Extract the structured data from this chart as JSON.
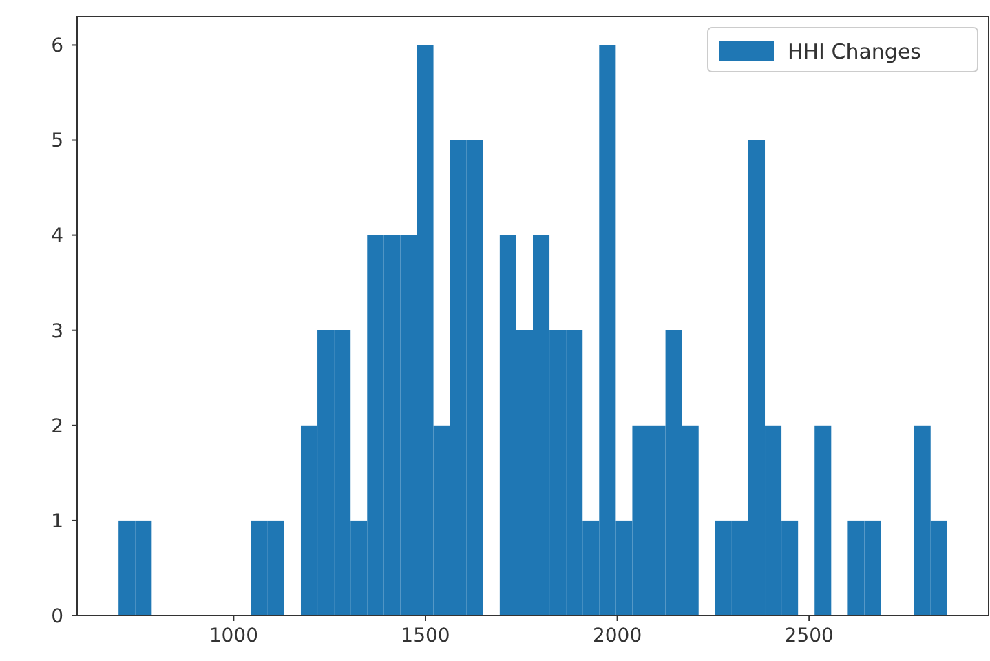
{
  "chart_data": {
    "type": "histogram",
    "bins": [
      700,
      743.2,
      786.4,
      829.6,
      872.8,
      916,
      959.2,
      1002.4,
      1045.6,
      1088.8,
      1132,
      1175.2,
      1218.4,
      1261.6,
      1304.8,
      1348,
      1391.2,
      1434.4,
      1477.6,
      1520.8,
      1564,
      1607.2,
      1650.4,
      1693.6,
      1736.8,
      1780,
      1823.2,
      1866.4,
      1909.6,
      1952.8,
      1996,
      2039.2,
      2082.4,
      2125.6,
      2168.8,
      2212,
      2255.2,
      2298.4,
      2341.6,
      2384.8,
      2428,
      2471.2,
      2514.4,
      2557.6,
      2600.8,
      2644,
      2687.2,
      2730.4,
      2773.6,
      2816.8,
      2860
    ],
    "series": [
      {
        "name": "HHI Changes",
        "color": "#1f77b4",
        "values": [
          1,
          1,
          0,
          0,
          0,
          0,
          0,
          0,
          1,
          1,
          0,
          2,
          3,
          3,
          1,
          4,
          4,
          4,
          6,
          2,
          5,
          5,
          0,
          4,
          3,
          4,
          3,
          3,
          1,
          6,
          1,
          2,
          2,
          3,
          2,
          0,
          1,
          1,
          5,
          2,
          1,
          0,
          2,
          0,
          1,
          1,
          0,
          0,
          2,
          1
        ]
      }
    ],
    "xlim": [
      592,
      2968
    ],
    "xticks": [
      1000,
      1500,
      2000,
      2500
    ],
    "ylim": [
      0,
      6.3
    ],
    "yticks": [
      0,
      1,
      2,
      3,
      4,
      5,
      6
    ],
    "grid": false,
    "legend": "top right"
  }
}
